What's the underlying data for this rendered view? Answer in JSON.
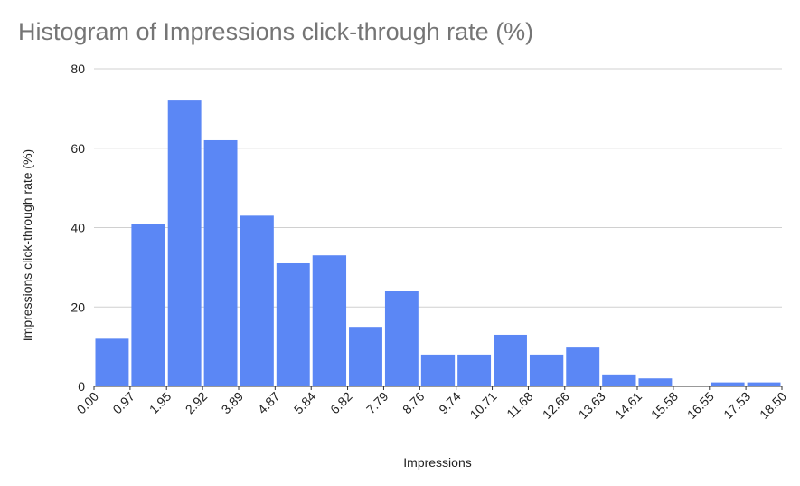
{
  "chart_data": {
    "type": "histogram",
    "title": "Histogram of Impressions click-through rate (%)",
    "x_label": "Impressions",
    "y_label": "Impressions click-through rate (%)",
    "bins": [
      0,
      0.97,
      1.95,
      2.92,
      3.89,
      4.87,
      5.84,
      6.82,
      7.79,
      8.76,
      9.74,
      10.71,
      11.68,
      12.66,
      13.63,
      14.61,
      15.58,
      16.55,
      17.53,
      18.5
    ],
    "values": [
      12,
      41,
      72,
      62,
      43,
      31,
      33,
      15,
      24,
      8,
      8,
      13,
      8,
      10,
      3,
      2,
      0,
      1,
      1
    ],
    "color": "#5b87f5",
    "xlim": [
      0,
      18.5
    ],
    "xticks": [
      {
        "value": 0,
        "label": "0.00"
      },
      0.97,
      1.95,
      2.92,
      3.89,
      4.87,
      5.84,
      6.82,
      7.79,
      8.76,
      9.74,
      10.71,
      11.68,
      12.66,
      13.63,
      14.61,
      15.58,
      16.55,
      17.53,
      {
        "value": 18.5,
        "label": "18.50"
      }
    ],
    "ylim": [
      0,
      80
    ],
    "yticks": [
      0,
      20,
      40,
      60,
      80
    ],
    "grid": true
  }
}
